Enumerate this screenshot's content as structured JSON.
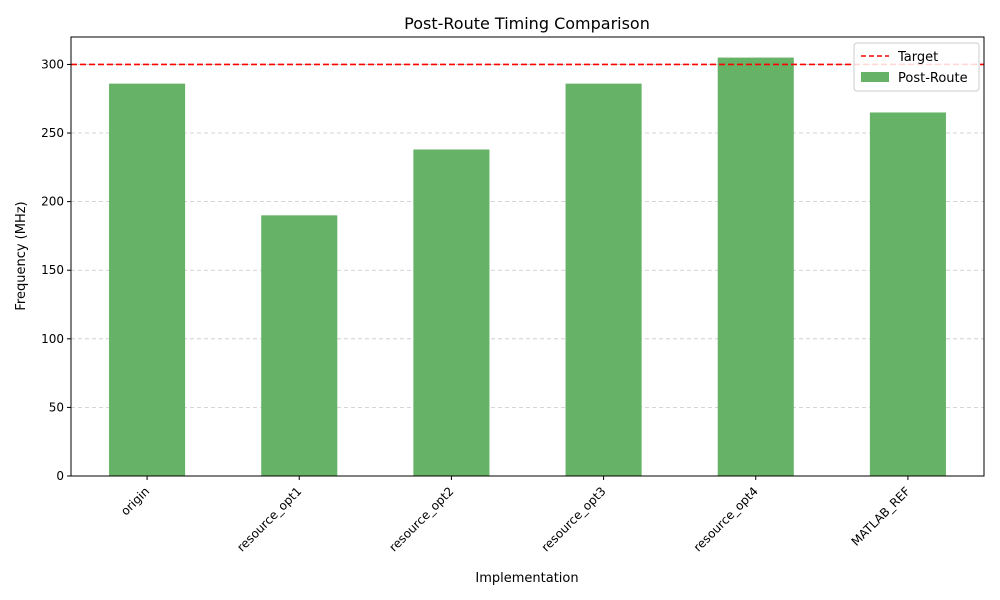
{
  "chart_data": {
    "type": "bar",
    "title": "Post-Route Timing Comparison",
    "xlabel": "Implementation",
    "ylabel": "Frequency (MHz)",
    "categories": [
      "origin",
      "resource_opt1",
      "resource_opt2",
      "resource_opt3",
      "resource_opt4",
      "MATLAB_REF"
    ],
    "series": [
      {
        "name": "Post-Route",
        "values": [
          286,
          190,
          238,
          286,
          305,
          265
        ],
        "color": "#66b266"
      }
    ],
    "reference_lines": [
      {
        "name": "Target",
        "value": 300,
        "color": "#ff0000",
        "style": "dashed"
      }
    ],
    "ylim": [
      0,
      320
    ],
    "yticks": [
      0,
      50,
      100,
      150,
      200,
      250,
      300
    ],
    "grid": "y-dashed",
    "legend_position": "top-right"
  }
}
